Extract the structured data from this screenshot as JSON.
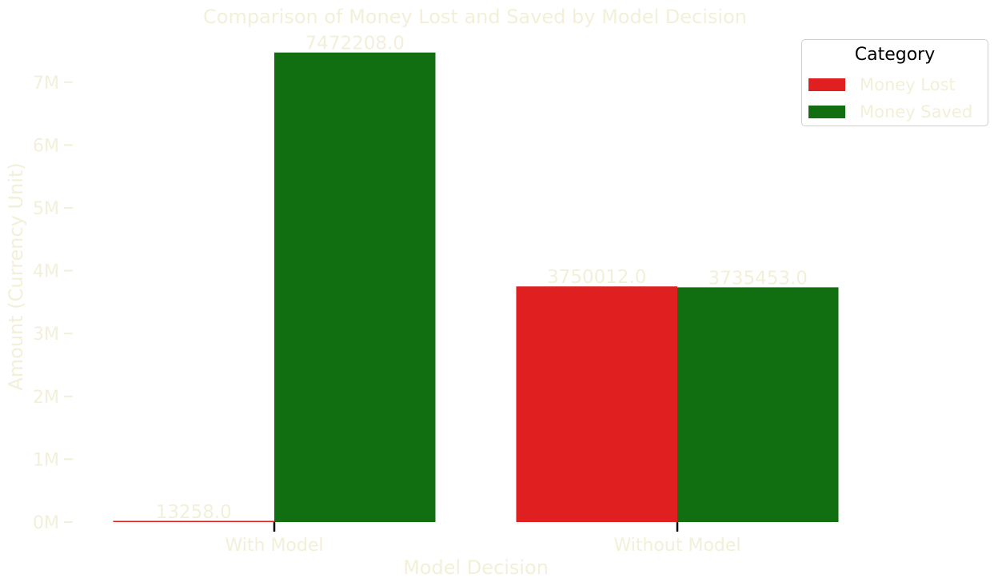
{
  "chart_data": {
    "type": "bar",
    "title": "Comparison of Money Lost and Saved by Model Decision",
    "xlabel": "Model Decision",
    "ylabel": "Amount (Currency Unit)",
    "categories": [
      "With Model",
      "Without Model"
    ],
    "series": [
      {
        "name": "Money Lost",
        "color": "#e02020",
        "values": [
          13258.0,
          3750012.0
        ],
        "labels": [
          "13258.0",
          "3750012.0"
        ]
      },
      {
        "name": "Money Saved",
        "color": "#116f11",
        "values": [
          7472208.0,
          3735453.0
        ],
        "labels": [
          "7472208.0",
          "3735453.0"
        ]
      }
    ],
    "ylim": [
      0,
      7500000
    ],
    "yticks": [
      0,
      1000000,
      2000000,
      3000000,
      4000000,
      5000000,
      6000000,
      7000000
    ],
    "ytick_labels": [
      "0M",
      "1M",
      "2M",
      "3M",
      "4M",
      "5M",
      "6M",
      "7M"
    ],
    "legend": {
      "title": "Category",
      "position": "top-right"
    },
    "grid": false
  }
}
